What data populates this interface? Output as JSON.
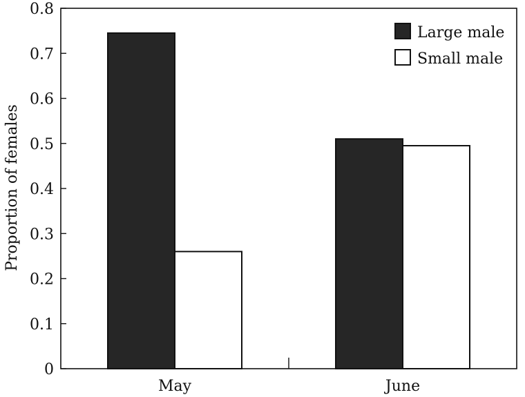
{
  "chart_data": {
    "type": "bar",
    "title": "",
    "xlabel": "",
    "ylabel": "Proportion of females",
    "ylim": [
      0,
      0.8
    ],
    "yticks": [
      0,
      0.1,
      0.2,
      0.3,
      0.4,
      0.5,
      0.6,
      0.7,
      0.8
    ],
    "ytick_labels": [
      "0",
      "0.1",
      "0.2",
      "0.3",
      "0.4",
      "0.5",
      "0.6",
      "0.7",
      "0.8"
    ],
    "categories": [
      "May",
      "June"
    ],
    "series": [
      {
        "name": "Large male",
        "values": [
          0.745,
          0.51
        ],
        "color": "#262626"
      },
      {
        "name": "Small male",
        "values": [
          0.26,
          0.495
        ],
        "color": "#ffffff"
      }
    ],
    "legend_position": "top-right",
    "grid": false
  }
}
